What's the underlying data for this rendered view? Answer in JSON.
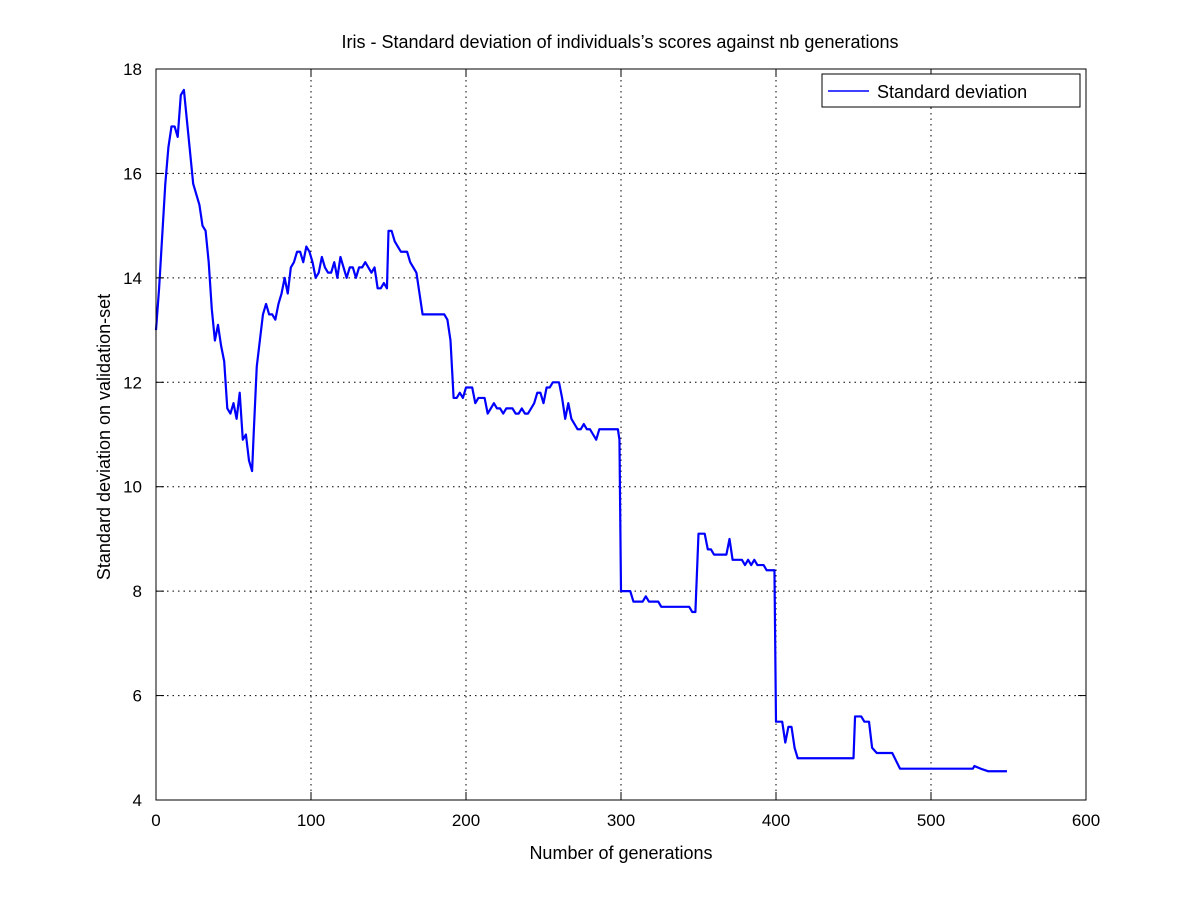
{
  "chart_data": {
    "type": "line",
    "title": "Iris - Standard deviation of individuals’s scores against nb generations",
    "xlabel": "Number of generations",
    "ylabel": "Standard deviation on validation-set",
    "xlim": [
      0,
      600
    ],
    "ylim": [
      4,
      18
    ],
    "xticks": [
      "0",
      "100",
      "200",
      "300",
      "400",
      "500",
      "600"
    ],
    "yticks": [
      "4",
      "6",
      "8",
      "10",
      "12",
      "14",
      "16",
      "18"
    ],
    "grid": true,
    "legend_position": "top-right",
    "series": [
      {
        "name": "Standard deviation",
        "color": "#0000ff",
        "points": [
          [
            0,
            13.0
          ],
          [
            2,
            13.8
          ],
          [
            4,
            14.8
          ],
          [
            6,
            15.8
          ],
          [
            8,
            16.5
          ],
          [
            10,
            16.9
          ],
          [
            12,
            16.9
          ],
          [
            14,
            16.7
          ],
          [
            16,
            17.5
          ],
          [
            18,
            17.6
          ],
          [
            20,
            17.0
          ],
          [
            22,
            16.4
          ],
          [
            24,
            15.8
          ],
          [
            26,
            15.6
          ],
          [
            28,
            15.4
          ],
          [
            30,
            15.0
          ],
          [
            32,
            14.9
          ],
          [
            34,
            14.3
          ],
          [
            36,
            13.4
          ],
          [
            38,
            12.8
          ],
          [
            40,
            13.1
          ],
          [
            42,
            12.7
          ],
          [
            44,
            12.4
          ],
          [
            46,
            11.5
          ],
          [
            48,
            11.4
          ],
          [
            50,
            11.6
          ],
          [
            52,
            11.3
          ],
          [
            54,
            11.8
          ],
          [
            56,
            10.9
          ],
          [
            58,
            11.0
          ],
          [
            60,
            10.5
          ],
          [
            62,
            10.3
          ],
          [
            63,
            11.0
          ],
          [
            65,
            12.3
          ],
          [
            67,
            12.8
          ],
          [
            69,
            13.3
          ],
          [
            71,
            13.5
          ],
          [
            73,
            13.3
          ],
          [
            75,
            13.3
          ],
          [
            77,
            13.2
          ],
          [
            79,
            13.5
          ],
          [
            81,
            13.7
          ],
          [
            83,
            14.0
          ],
          [
            85,
            13.7
          ],
          [
            87,
            14.2
          ],
          [
            89,
            14.3
          ],
          [
            91,
            14.5
          ],
          [
            93,
            14.5
          ],
          [
            95,
            14.3
          ],
          [
            97,
            14.6
          ],
          [
            99,
            14.5
          ],
          [
            101,
            14.3
          ],
          [
            103,
            14.0
          ],
          [
            105,
            14.1
          ],
          [
            107,
            14.4
          ],
          [
            109,
            14.2
          ],
          [
            111,
            14.1
          ],
          [
            113,
            14.1
          ],
          [
            115,
            14.3
          ],
          [
            117,
            14.0
          ],
          [
            119,
            14.4
          ],
          [
            121,
            14.2
          ],
          [
            123,
            14.0
          ],
          [
            125,
            14.2
          ],
          [
            127,
            14.2
          ],
          [
            129,
            14.0
          ],
          [
            131,
            14.2
          ],
          [
            133,
            14.2
          ],
          [
            135,
            14.3
          ],
          [
            137,
            14.2
          ],
          [
            139,
            14.1
          ],
          [
            141,
            14.2
          ],
          [
            143,
            13.8
          ],
          [
            145,
            13.8
          ],
          [
            147,
            13.9
          ],
          [
            149,
            13.8
          ],
          [
            150,
            14.9
          ],
          [
            152,
            14.9
          ],
          [
            154,
            14.7
          ],
          [
            156,
            14.6
          ],
          [
            158,
            14.5
          ],
          [
            160,
            14.5
          ],
          [
            162,
            14.5
          ],
          [
            164,
            14.3
          ],
          [
            166,
            14.2
          ],
          [
            168,
            14.1
          ],
          [
            170,
            13.7
          ],
          [
            172,
            13.3
          ],
          [
            174,
            13.3
          ],
          [
            176,
            13.3
          ],
          [
            178,
            13.3
          ],
          [
            180,
            13.3
          ],
          [
            182,
            13.3
          ],
          [
            184,
            13.3
          ],
          [
            186,
            13.3
          ],
          [
            188,
            13.2
          ],
          [
            190,
            12.8
          ],
          [
            192,
            11.7
          ],
          [
            194,
            11.7
          ],
          [
            196,
            11.8
          ],
          [
            198,
            11.7
          ],
          [
            200,
            11.9
          ],
          [
            202,
            11.9
          ],
          [
            204,
            11.9
          ],
          [
            206,
            11.6
          ],
          [
            208,
            11.7
          ],
          [
            210,
            11.7
          ],
          [
            212,
            11.7
          ],
          [
            214,
            11.4
          ],
          [
            216,
            11.5
          ],
          [
            218,
            11.6
          ],
          [
            220,
            11.5
          ],
          [
            222,
            11.5
          ],
          [
            224,
            11.4
          ],
          [
            226,
            11.5
          ],
          [
            228,
            11.5
          ],
          [
            230,
            11.5
          ],
          [
            232,
            11.4
          ],
          [
            234,
            11.4
          ],
          [
            236,
            11.5
          ],
          [
            238,
            11.4
          ],
          [
            240,
            11.4
          ],
          [
            242,
            11.5
          ],
          [
            244,
            11.6
          ],
          [
            246,
            11.8
          ],
          [
            248,
            11.8
          ],
          [
            250,
            11.6
          ],
          [
            252,
            11.9
          ],
          [
            254,
            11.9
          ],
          [
            256,
            12.0
          ],
          [
            258,
            12.0
          ],
          [
            260,
            12.0
          ],
          [
            262,
            11.7
          ],
          [
            264,
            11.3
          ],
          [
            266,
            11.6
          ],
          [
            268,
            11.3
          ],
          [
            270,
            11.2
          ],
          [
            272,
            11.1
          ],
          [
            274,
            11.1
          ],
          [
            276,
            11.2
          ],
          [
            278,
            11.1
          ],
          [
            280,
            11.1
          ],
          [
            282,
            11.0
          ],
          [
            284,
            10.9
          ],
          [
            286,
            11.1
          ],
          [
            288,
            11.1
          ],
          [
            290,
            11.1
          ],
          [
            292,
            11.1
          ],
          [
            294,
            11.1
          ],
          [
            296,
            11.1
          ],
          [
            298,
            11.1
          ],
          [
            299,
            10.9
          ],
          [
            300,
            8.0
          ],
          [
            302,
            8.0
          ],
          [
            304,
            8.0
          ],
          [
            306,
            8.0
          ],
          [
            308,
            7.8
          ],
          [
            310,
            7.8
          ],
          [
            312,
            7.8
          ],
          [
            314,
            7.8
          ],
          [
            316,
            7.9
          ],
          [
            318,
            7.8
          ],
          [
            320,
            7.8
          ],
          [
            322,
            7.8
          ],
          [
            324,
            7.8
          ],
          [
            326,
            7.7
          ],
          [
            328,
            7.7
          ],
          [
            330,
            7.7
          ],
          [
            332,
            7.7
          ],
          [
            334,
            7.7
          ],
          [
            336,
            7.7
          ],
          [
            338,
            7.7
          ],
          [
            340,
            7.7
          ],
          [
            342,
            7.7
          ],
          [
            344,
            7.7
          ],
          [
            346,
            7.6
          ],
          [
            348,
            7.6
          ],
          [
            350,
            9.1
          ],
          [
            352,
            9.1
          ],
          [
            354,
            9.1
          ],
          [
            356,
            8.8
          ],
          [
            358,
            8.8
          ],
          [
            360,
            8.7
          ],
          [
            362,
            8.7
          ],
          [
            364,
            8.7
          ],
          [
            366,
            8.7
          ],
          [
            368,
            8.7
          ],
          [
            370,
            9.0
          ],
          [
            372,
            8.6
          ],
          [
            374,
            8.6
          ],
          [
            376,
            8.6
          ],
          [
            378,
            8.6
          ],
          [
            380,
            8.5
          ],
          [
            382,
            8.6
          ],
          [
            384,
            8.5
          ],
          [
            386,
            8.6
          ],
          [
            388,
            8.5
          ],
          [
            390,
            8.5
          ],
          [
            392,
            8.5
          ],
          [
            394,
            8.4
          ],
          [
            396,
            8.4
          ],
          [
            398,
            8.4
          ],
          [
            399,
            8.4
          ],
          [
            400,
            5.5
          ],
          [
            402,
            5.5
          ],
          [
            404,
            5.5
          ],
          [
            406,
            5.1
          ],
          [
            408,
            5.4
          ],
          [
            410,
            5.4
          ],
          [
            412,
            5.0
          ],
          [
            414,
            4.8
          ],
          [
            420,
            4.8
          ],
          [
            430,
            4.8
          ],
          [
            440,
            4.8
          ],
          [
            450,
            4.8
          ],
          [
            451,
            5.6
          ],
          [
            455,
            5.6
          ],
          [
            457,
            5.5
          ],
          [
            460,
            5.5
          ],
          [
            462,
            5.0
          ],
          [
            465,
            4.9
          ],
          [
            470,
            4.9
          ],
          [
            475,
            4.9
          ],
          [
            480,
            4.6
          ],
          [
            490,
            4.6
          ],
          [
            500,
            4.6
          ],
          [
            510,
            4.6
          ],
          [
            520,
            4.6
          ],
          [
            527,
            4.6
          ],
          [
            528,
            4.65
          ],
          [
            532,
            4.6
          ],
          [
            537,
            4.55
          ],
          [
            545,
            4.55
          ],
          [
            549,
            4.55
          ]
        ]
      }
    ]
  }
}
